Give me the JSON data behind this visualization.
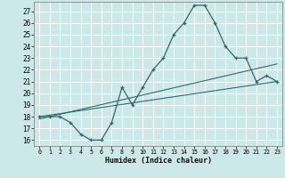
{
  "xlabel": "Humidex (Indice chaleur)",
  "bg_color": "#cde8e8",
  "grid_color": "#ffffff",
  "line_color": "#2d6b6b",
  "xlim": [
    -0.5,
    23.5
  ],
  "ylim": [
    15.5,
    27.8
  ],
  "xticks": [
    0,
    1,
    2,
    3,
    4,
    5,
    6,
    7,
    8,
    9,
    10,
    11,
    12,
    13,
    14,
    15,
    16,
    17,
    18,
    19,
    20,
    21,
    22,
    23
  ],
  "yticks": [
    16,
    17,
    18,
    19,
    20,
    21,
    22,
    23,
    24,
    25,
    26,
    27
  ],
  "main_x": [
    0,
    1,
    2,
    3,
    4,
    5,
    6,
    7,
    8,
    9,
    10,
    11,
    12,
    13,
    14,
    15,
    16,
    17,
    18,
    19,
    20,
    21,
    22,
    23
  ],
  "main_y": [
    18,
    18,
    18,
    17.5,
    16.5,
    16,
    16,
    17.5,
    20.5,
    19,
    20.5,
    22,
    23,
    25,
    26,
    27.5,
    27.5,
    26,
    24,
    23,
    23,
    21,
    21.5,
    21
  ],
  "trend1_x": [
    0,
    23
  ],
  "trend1_y": [
    18.0,
    21.0
  ],
  "trend2_x": [
    0,
    23
  ],
  "trend2_y": [
    17.8,
    22.5
  ]
}
